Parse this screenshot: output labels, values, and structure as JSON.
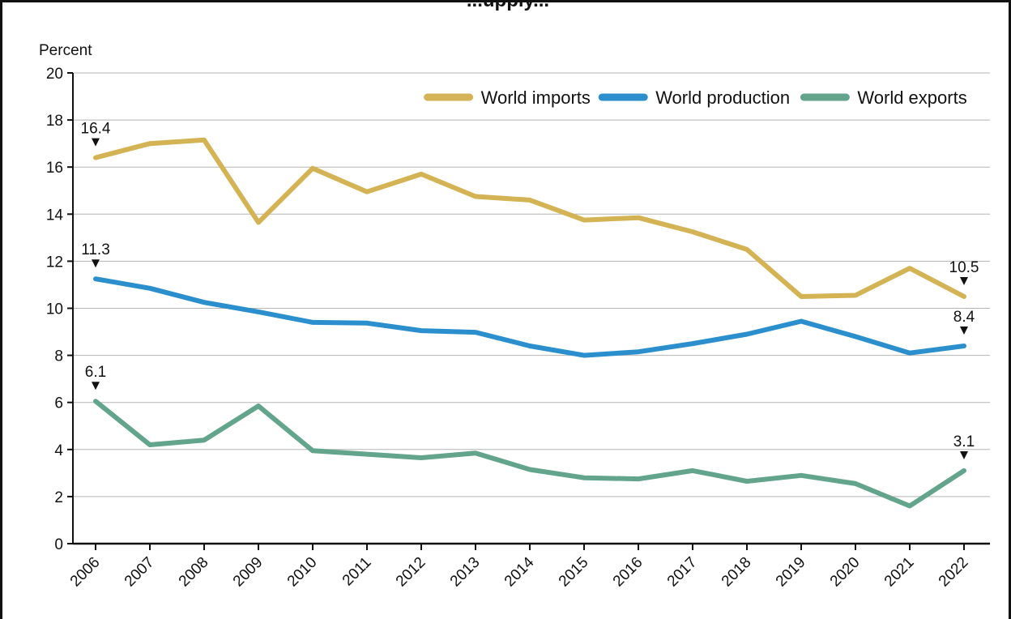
{
  "title": "...upply...",
  "chart_data": {
    "type": "line",
    "ylabel": "Percent",
    "xlabel": "",
    "ylim": [
      0,
      20
    ],
    "yticks": [
      0,
      2,
      4,
      6,
      8,
      10,
      12,
      14,
      16,
      18,
      20
    ],
    "grid": true,
    "legend_position": "top-right",
    "categories": [
      "2006",
      "2007",
      "2008",
      "2009",
      "2010",
      "2011",
      "2012",
      "2013",
      "2014",
      "2015",
      "2016",
      "2017",
      "2018",
      "2019",
      "2020",
      "2021",
      "2022"
    ],
    "series": [
      {
        "name": "World imports",
        "color": "#d4b354",
        "values": [
          16.4,
          17.0,
          17.15,
          13.65,
          15.95,
          14.95,
          15.7,
          14.75,
          14.6,
          13.75,
          13.85,
          13.25,
          12.5,
          10.5,
          10.55,
          11.7,
          10.5
        ],
        "labels": [
          {
            "index": 0,
            "text": "16.4"
          },
          {
            "index": 16,
            "text": "10.5"
          }
        ]
      },
      {
        "name": "World production",
        "color": "#2b8fcd",
        "values": [
          11.25,
          10.85,
          10.25,
          9.85,
          9.4,
          9.37,
          9.05,
          8.98,
          8.4,
          8.0,
          8.15,
          8.5,
          8.9,
          9.45,
          8.8,
          8.1,
          8.4
        ],
        "labels": [
          {
            "index": 0,
            "text": "11.3"
          },
          {
            "index": 16,
            "text": "8.4"
          }
        ]
      },
      {
        "name": "World exports",
        "color": "#62a58c",
        "values": [
          6.05,
          4.2,
          4.4,
          5.85,
          3.95,
          3.8,
          3.65,
          3.85,
          3.15,
          2.8,
          2.75,
          3.1,
          2.65,
          2.9,
          2.55,
          1.6,
          3.1
        ],
        "labels": [
          {
            "index": 0,
            "text": "6.1"
          },
          {
            "index": 16,
            "text": "3.1"
          }
        ]
      }
    ]
  }
}
